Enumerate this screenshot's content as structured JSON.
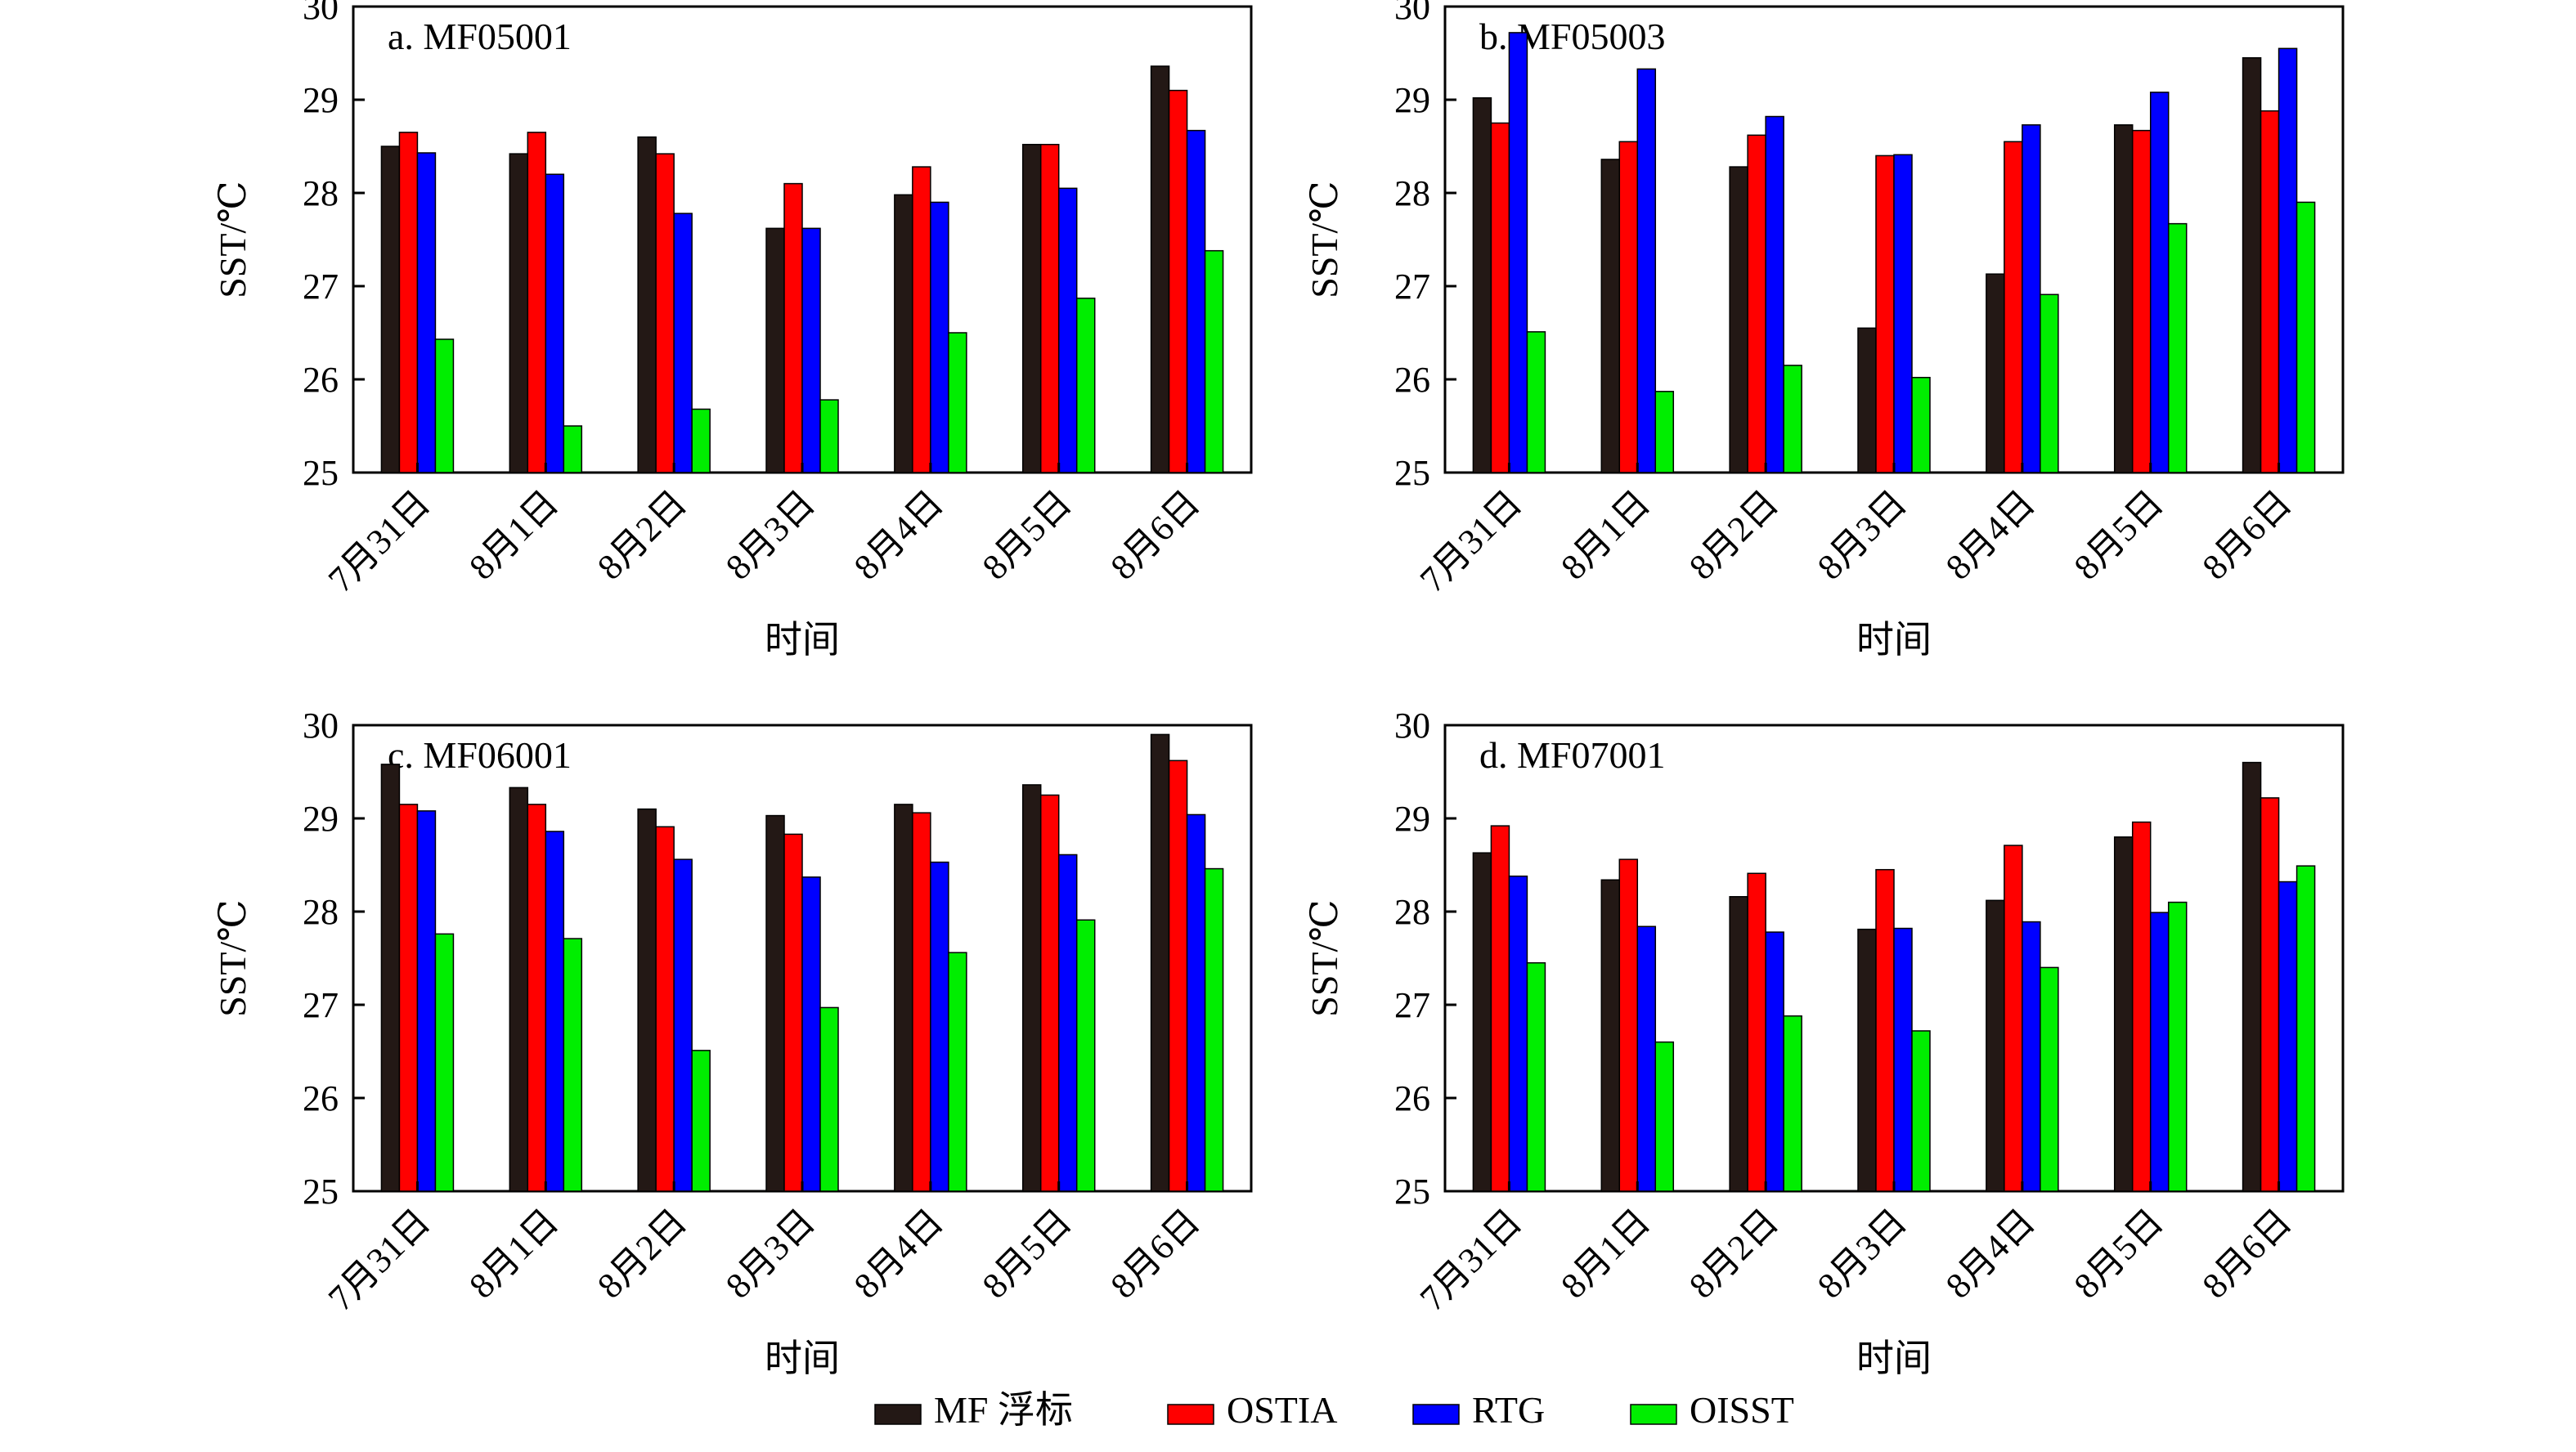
{
  "legend": [
    {
      "name": "MF 浮标",
      "color": "#231815"
    },
    {
      "name": "OSTIA",
      "color": "#ff0000"
    },
    {
      "name": "RTG",
      "color": "#0000ff"
    },
    {
      "name": "OISST",
      "color": "#00ee00"
    }
  ],
  "chart_data": [
    {
      "type": "bar",
      "title": "a. MF05001",
      "xlabel": "时间",
      "ylabel": "SST/℃",
      "ylim": [
        25,
        30
      ],
      "yticks": [
        25,
        26,
        27,
        28,
        29,
        30
      ],
      "categories": [
        "7月31日",
        "8月1日",
        "8月2日",
        "8月3日",
        "8月4日",
        "8月5日",
        "8月6日"
      ],
      "series": [
        {
          "name": "MF 浮标",
          "values": [
            28.5,
            28.42,
            28.6,
            27.62,
            27.98,
            28.52,
            29.36
          ]
        },
        {
          "name": "OSTIA",
          "values": [
            28.65,
            28.65,
            28.42,
            28.1,
            28.28,
            28.52,
            29.1
          ]
        },
        {
          "name": "RTG",
          "values": [
            28.43,
            28.2,
            27.78,
            27.62,
            27.9,
            28.05,
            28.67
          ]
        },
        {
          "name": "OISST",
          "values": [
            26.43,
            25.5,
            25.68,
            25.78,
            26.5,
            26.87,
            27.38
          ]
        }
      ]
    },
    {
      "type": "bar",
      "title": "b. MF05003",
      "xlabel": "时间",
      "ylabel": "SST/℃",
      "ylim": [
        25,
        30
      ],
      "yticks": [
        25,
        26,
        27,
        28,
        29,
        30
      ],
      "categories": [
        "7月31日",
        "8月1日",
        "8月2日",
        "8月3日",
        "8月4日",
        "8月5日",
        "8月6日"
      ],
      "series": [
        {
          "name": "MF 浮标",
          "values": [
            29.02,
            28.36,
            28.28,
            26.55,
            27.13,
            28.73,
            29.45
          ]
        },
        {
          "name": "OSTIA",
          "values": [
            28.75,
            28.55,
            28.62,
            28.4,
            28.55,
            28.67,
            28.88
          ]
        },
        {
          "name": "RTG",
          "values": [
            29.72,
            29.33,
            28.82,
            28.41,
            28.73,
            29.08,
            29.55
          ]
        },
        {
          "name": "OISST",
          "values": [
            26.51,
            25.87,
            26.15,
            26.02,
            26.91,
            27.67,
            27.9
          ]
        }
      ]
    },
    {
      "type": "bar",
      "title": "c. MF06001",
      "xlabel": "时间",
      "ylabel": "SST/℃",
      "ylim": [
        25,
        30
      ],
      "yticks": [
        25,
        26,
        27,
        28,
        29,
        30
      ],
      "categories": [
        "7月31日",
        "8月1日",
        "8月2日",
        "8月3日",
        "8月4日",
        "8月5日",
        "8月6日"
      ],
      "series": [
        {
          "name": "MF 浮标",
          "values": [
            29.58,
            29.33,
            29.1,
            29.03,
            29.15,
            29.36,
            29.9
          ]
        },
        {
          "name": "OSTIA",
          "values": [
            29.15,
            29.15,
            28.91,
            28.83,
            29.06,
            29.25,
            29.62
          ]
        },
        {
          "name": "RTG",
          "values": [
            29.08,
            28.86,
            28.56,
            28.37,
            28.53,
            28.61,
            29.04
          ]
        },
        {
          "name": "OISST",
          "values": [
            27.76,
            27.71,
            26.51,
            26.97,
            27.56,
            27.91,
            28.46
          ]
        }
      ]
    },
    {
      "type": "bar",
      "title": "d. MF07001",
      "xlabel": "时间",
      "ylabel": "SST/℃",
      "ylim": [
        25,
        30
      ],
      "yticks": [
        25,
        26,
        27,
        28,
        29,
        30
      ],
      "categories": [
        "7月31日",
        "8月1日",
        "8月2日",
        "8月3日",
        "8月4日",
        "8月5日",
        "8月6日"
      ],
      "series": [
        {
          "name": "MF 浮标",
          "values": [
            28.63,
            28.34,
            28.16,
            27.81,
            28.12,
            28.8,
            29.6
          ]
        },
        {
          "name": "OSTIA",
          "values": [
            28.92,
            28.56,
            28.41,
            28.45,
            28.71,
            28.96,
            29.22
          ]
        },
        {
          "name": "RTG",
          "values": [
            28.38,
            27.84,
            27.78,
            27.82,
            27.89,
            27.99,
            28.32
          ]
        },
        {
          "name": "OISST",
          "values": [
            27.45,
            26.6,
            26.88,
            26.72,
            27.4,
            28.1,
            28.49
          ]
        }
      ]
    }
  ]
}
